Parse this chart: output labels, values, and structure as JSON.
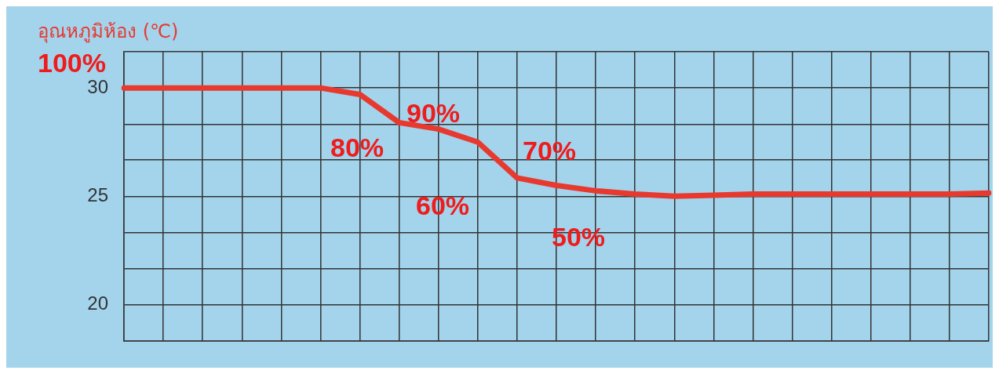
{
  "chart_data": {
    "type": "line",
    "ylabel": "อุณหภูมิห้อง (℃)",
    "categories": [
      null,
      null,
      null,
      null,
      null,
      null,
      null,
      null,
      null,
      null,
      null,
      null,
      null,
      null,
      null,
      null,
      null,
      null,
      null,
      null,
      null,
      null,
      null
    ],
    "series": [
      {
        "color": "#e8392f",
        "values": [
          30,
          30,
          30,
          30,
          30,
          30,
          29.7,
          28.4,
          28.1,
          27.5,
          25.85,
          25.5,
          25.25,
          25.1,
          25,
          25.05,
          25.1,
          25.1,
          25.1,
          25.1,
          25.1,
          25.1,
          25.15
        ]
      }
    ],
    "ylim": [
      18.33,
      31.67
    ],
    "yticks": [
      {
        "value": 18.33,
        "label": null
      },
      20,
      {
        "value": 21.67,
        "label": null
      },
      {
        "value": 23.33,
        "label": null
      },
      25,
      {
        "value": 26.67,
        "label": null
      },
      {
        "value": 28.33,
        "label": null
      },
      30,
      {
        "value": 31.67,
        "label": null
      }
    ],
    "grid": true,
    "legend": false,
    "marker": "none",
    "line_style": "solid",
    "tick_labels": "y",
    "annotations": [
      "100%",
      "90%",
      "80%",
      "70%",
      "60%",
      "50%"
    ]
  }
}
